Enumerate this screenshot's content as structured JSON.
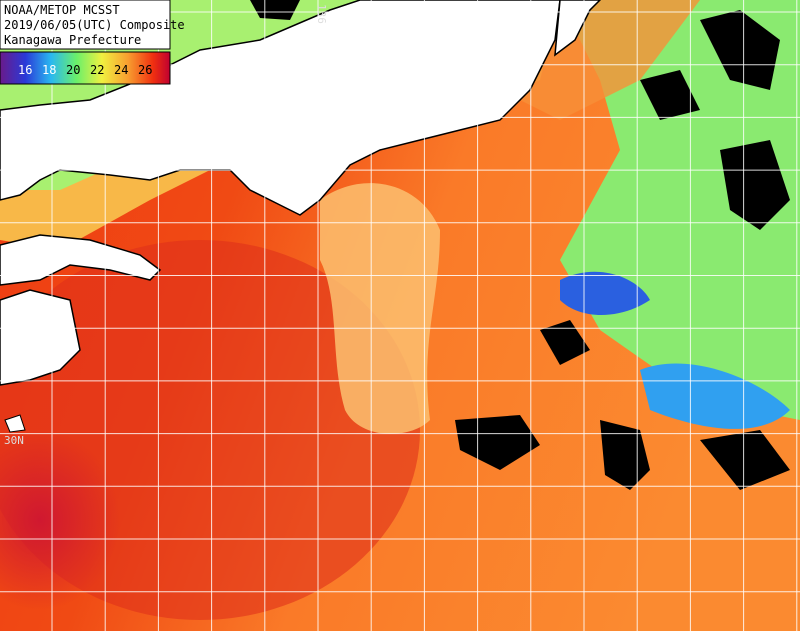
{
  "header": {
    "lines": [
      "NOAA/METOP MCSST",
      "2019/06/05(UTC) Composite",
      "Kanagawa Prefecture"
    ]
  },
  "legend": {
    "labels": [
      16,
      18,
      20,
      22,
      24,
      26
    ]
  },
  "grid_labels": {
    "latitude": "30N",
    "longitude": "136"
  }
}
